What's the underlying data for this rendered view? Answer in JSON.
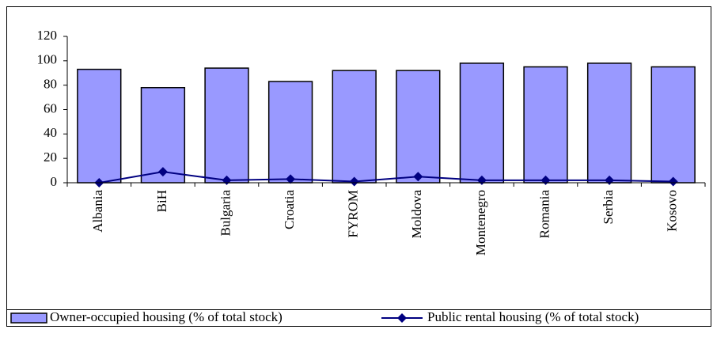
{
  "chart_data": {
    "type": "bar_line",
    "categories": [
      "Albania",
      "BiH",
      "Bulgaria",
      "Croatia",
      "FYROM",
      "Moldova",
      "Montenegro",
      "Romania",
      "Serbia",
      "Kosovo"
    ],
    "series": [
      {
        "name": "Owner-occupied housing (% of total stock)",
        "type": "bar",
        "color": "#9999ff",
        "values": [
          93,
          78,
          94,
          83,
          92,
          92,
          98,
          95,
          98,
          95
        ]
      },
      {
        "name": "Public rental housing (% of total stock)",
        "type": "line",
        "color": "#000080",
        "values": [
          0,
          9,
          2,
          3,
          1,
          5,
          2,
          2,
          2,
          1
        ]
      }
    ],
    "ylim": [
      0,
      120
    ],
    "yticks": [
      0,
      20,
      40,
      60,
      80,
      100,
      120
    ],
    "grid": false,
    "legend": "bottom"
  }
}
